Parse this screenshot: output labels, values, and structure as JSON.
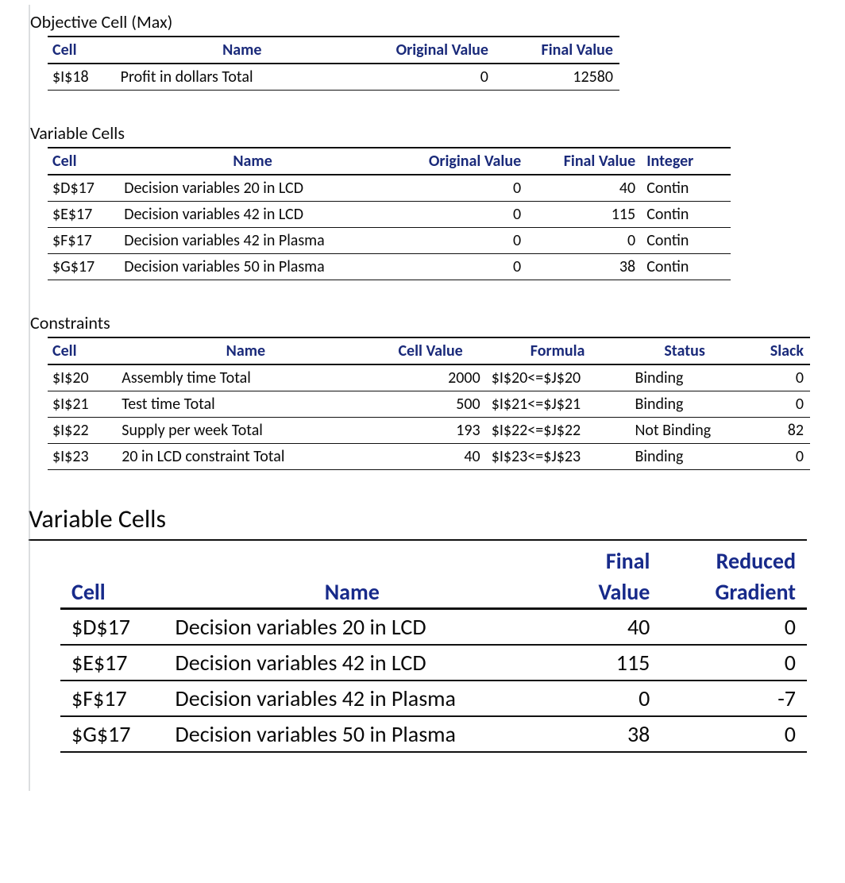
{
  "colors": {
    "header_text": "#1a2a7a",
    "rule": "#111111",
    "left_rule": "#9aa0a6",
    "background": "#ffffff",
    "text": "#0a0a0a"
  },
  "typography": {
    "base_font": "Calibri",
    "section_title_size_pt": 16,
    "table_font_size_pt": 15,
    "big_title_size_pt": 24,
    "big_table_font_size_pt": 21
  },
  "objective": {
    "title": "Objective Cell (Max)",
    "headers": {
      "cell": "Cell",
      "name": "Name",
      "orig": "Original Value",
      "final": "Final Value"
    },
    "row": {
      "cell": "$I$18",
      "name": "Profit in dollars Total",
      "orig": "0",
      "final": "12580"
    }
  },
  "variables": {
    "title": "Variable Cells",
    "headers": {
      "cell": "Cell",
      "name": "Name",
      "orig": "Original Value",
      "final": "Final Value",
      "int": "Integer"
    },
    "rows": [
      {
        "cell": "$D$17",
        "name": "Decision variables 20 in LCD",
        "orig": "0",
        "final": "40",
        "int": "Contin"
      },
      {
        "cell": "$E$17",
        "name": "Decision variables 42 in LCD",
        "orig": "0",
        "final": "115",
        "int": "Contin"
      },
      {
        "cell": "$F$17",
        "name": "Decision variables 42 in Plasma",
        "orig": "0",
        "final": "0",
        "int": "Contin"
      },
      {
        "cell": "$G$17",
        "name": "Decision variables 50 in Plasma",
        "orig": "0",
        "final": "38",
        "int": "Contin"
      }
    ]
  },
  "constraints": {
    "title": "Constraints",
    "headers": {
      "cell": "Cell",
      "name": "Name",
      "val": "Cell Value",
      "formula": "Formula",
      "status": "Status",
      "slack": "Slack"
    },
    "rows": [
      {
        "cell": "$I$20",
        "name": "Assembly time  Total",
        "val": "2000",
        "formula": "$I$20<=$J$20",
        "status": "Binding",
        "slack": "0"
      },
      {
        "cell": "$I$21",
        "name": "Test time Total",
        "val": "500",
        "formula": "$I$21<=$J$21",
        "status": "Binding",
        "slack": "0"
      },
      {
        "cell": "$I$22",
        "name": "Supply per week Total",
        "val": "193",
        "formula": "$I$22<=$J$22",
        "status": "Not Binding",
        "slack": "82"
      },
      {
        "cell": "$I$23",
        "name": "20 in LCD constraint Total",
        "val": "40",
        "formula": "$I$23<=$J$23",
        "status": "Binding",
        "slack": "0"
      }
    ]
  },
  "sensitivity": {
    "title": "Variable Cells",
    "headers": {
      "cell": "Cell",
      "name": "Name",
      "final_top": "Final",
      "final_bot": "Value",
      "reduced_top": "Reduced",
      "reduced_bot": "Gradient"
    },
    "rows": [
      {
        "cell": "$D$17",
        "name": "Decision variables 20 in LCD",
        "final": "40",
        "reduced": "0"
      },
      {
        "cell": "$E$17",
        "name": "Decision variables 42 in LCD",
        "final": "115",
        "reduced": "0"
      },
      {
        "cell": "$F$17",
        "name": "Decision variables 42 in Plasma",
        "final": "0",
        "reduced": "-7"
      },
      {
        "cell": "$G$17",
        "name": "Decision variables 50 in Plasma",
        "final": "38",
        "reduced": "0"
      }
    ]
  }
}
